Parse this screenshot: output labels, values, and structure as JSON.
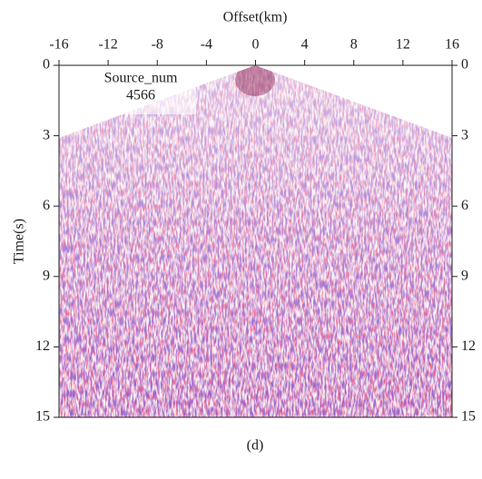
{
  "chart_data": {
    "type": "seismic-gather",
    "xlabel": "Offset(km)",
    "ylabel": "Time(s)",
    "caption": "(d)",
    "annotations": [
      "Source_num",
      "4566"
    ],
    "xlim": [
      -16,
      16
    ],
    "xticks": [
      -16,
      -12,
      -8,
      -4,
      0,
      4,
      8,
      12,
      16
    ],
    "ylim": [
      15,
      0
    ],
    "yticks": [
      0,
      3,
      6,
      9,
      12,
      15
    ]
  }
}
